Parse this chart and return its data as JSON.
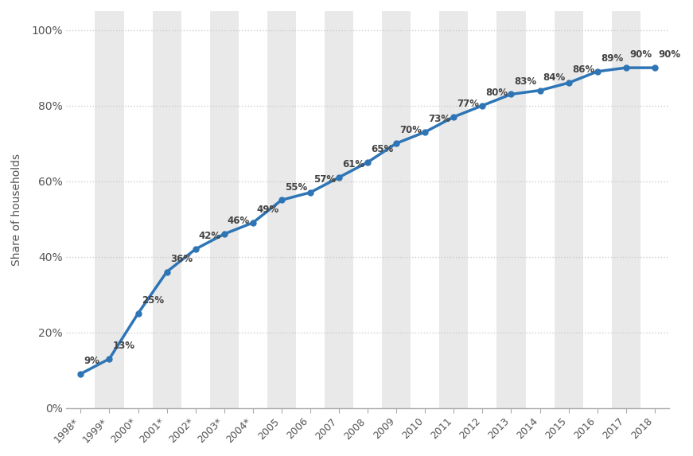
{
  "years": [
    "1998*",
    "1999*",
    "2000*",
    "2001*",
    "2002*",
    "2003*",
    "2004*",
    "2005",
    "2006",
    "2007",
    "2008",
    "2009",
    "2010",
    "2011",
    "2012",
    "2013",
    "2014",
    "2015",
    "2016",
    "2017",
    "2018"
  ],
  "values": [
    9,
    13,
    25,
    36,
    42,
    46,
    49,
    55,
    57,
    61,
    65,
    70,
    73,
    77,
    80,
    83,
    84,
    86,
    89,
    90,
    90
  ],
  "line_color": "#2e75b6",
  "marker_color": "#2e75b6",
  "ylabel": "Share of households",
  "ylim": [
    0,
    100
  ],
  "yticks": [
    0,
    20,
    40,
    60,
    80,
    100
  ],
  "ytick_labels": [
    "0%",
    "20%",
    "40%",
    "60%",
    "80%",
    "100%"
  ],
  "grid_color": "#cccccc",
  "band_color": "#e9e9e9",
  "background_color": "#ffffff",
  "plot_background": "#ffffff",
  "label_fontsize": 8.5,
  "axis_label_fontsize": 10,
  "tick_label_color": "#555555",
  "annotation_color": "#444444",
  "annotation_fontweight": "bold"
}
